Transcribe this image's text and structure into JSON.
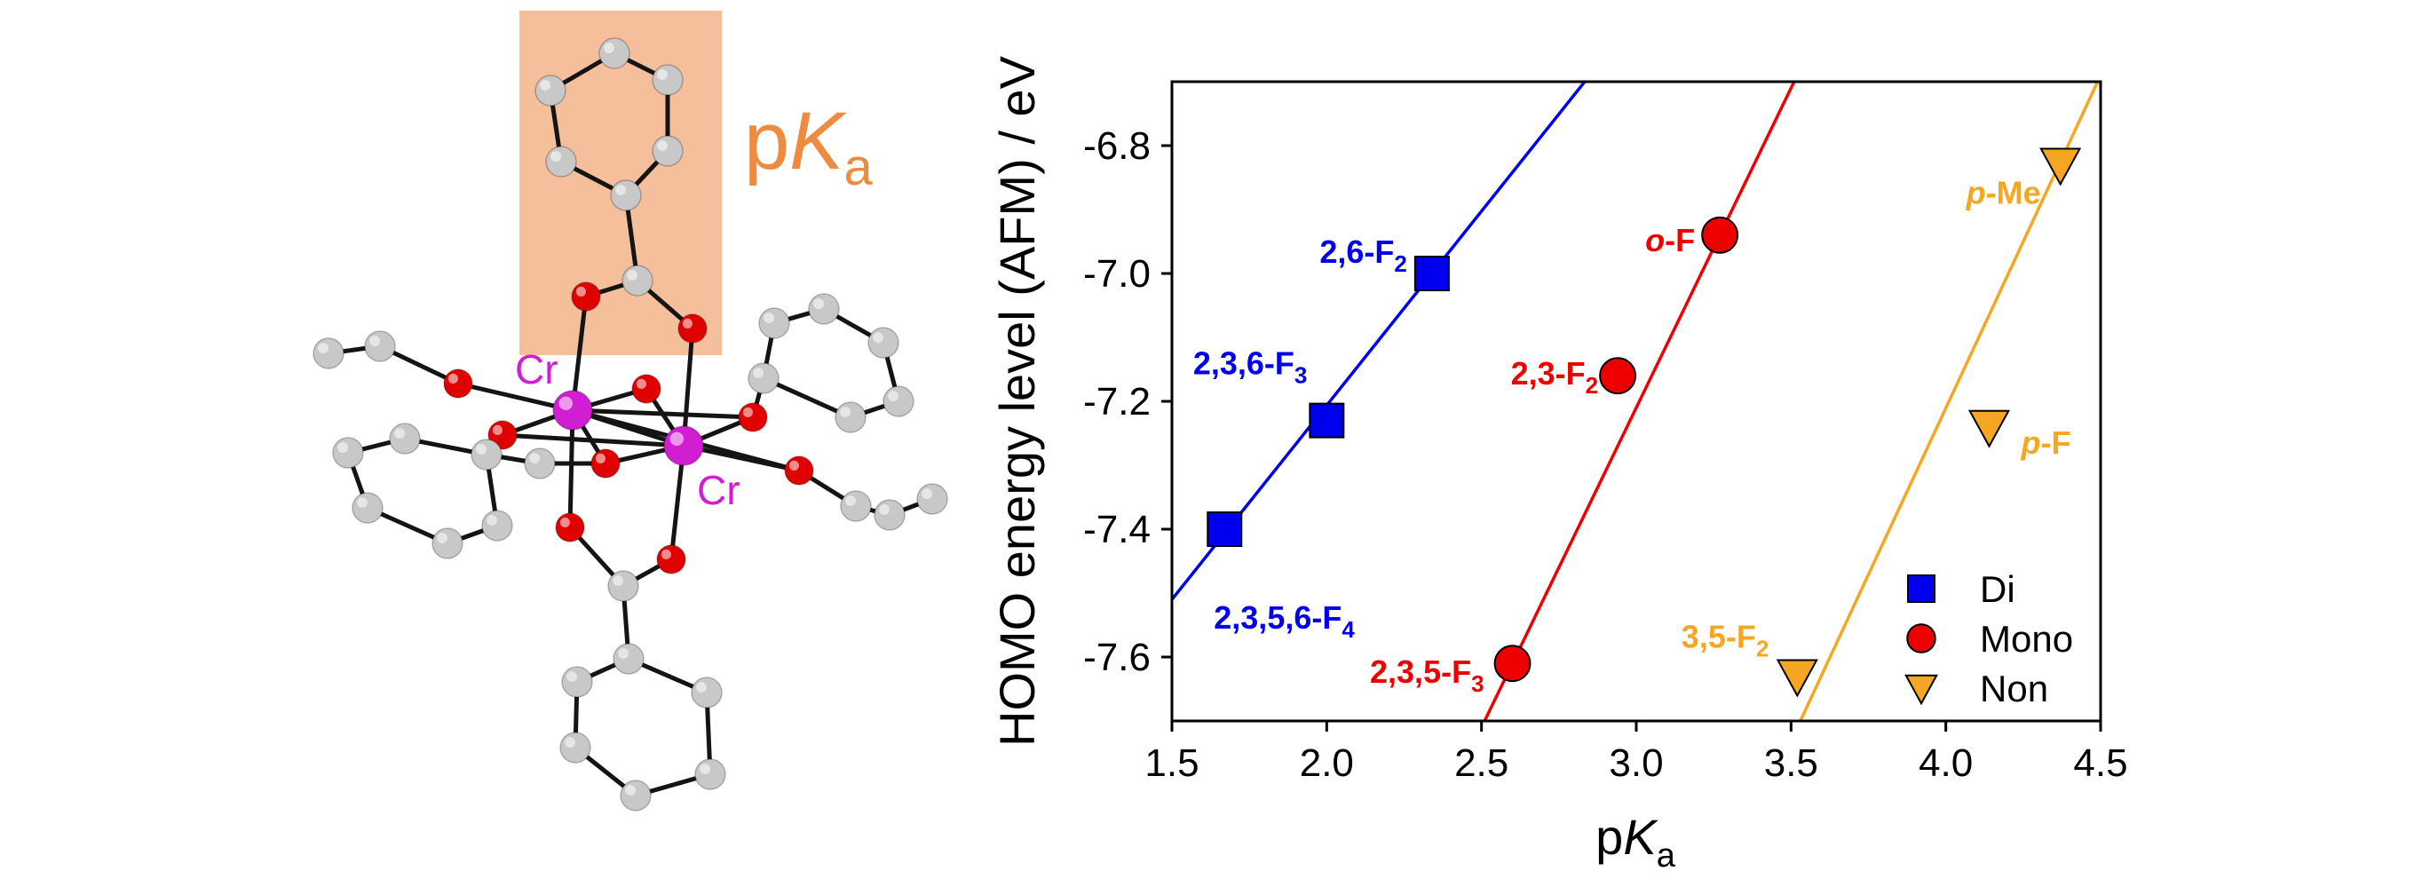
{
  "molecule": {
    "highlight_label_main": "p",
    "highlight_label_italic": "K",
    "highlight_label_sub": "a",
    "metal_label_1": "Cr",
    "metal_label_2": "Cr",
    "highlight_color": "#f5bf9c",
    "label_color": "#ee8b3f",
    "metal_color": "#d21ed2",
    "oxygen_color": "#e00000",
    "carbon_color": "#c8c8c8"
  },
  "chart_data": {
    "type": "scatter",
    "xlabel_main": "p",
    "xlabel_italic": "K",
    "xlabel_sub": "a",
    "ylabel": "HOMO energy level (AFM) / eV",
    "xlim": [
      1.5,
      4.5
    ],
    "ylim": [
      -7.7,
      -6.7
    ],
    "x_ticks": [
      1.5,
      2.0,
      2.5,
      3.0,
      3.5,
      4.0,
      4.5
    ],
    "y_ticks": [
      -7.6,
      -7.4,
      -7.2,
      -7.0,
      -6.8
    ],
    "x_tick_labels": [
      "1.5",
      "2.0",
      "2.5",
      "3.0",
      "3.5",
      "4.0",
      "4.5"
    ],
    "y_tick_labels": [
      "-7.6",
      "-7.4",
      "-7.2",
      "-7.0",
      "-6.8"
    ],
    "grid": false,
    "legend_position": "bottom-right",
    "series": [
      {
        "name": "Di",
        "marker": "square",
        "color": "#0000ee",
        "fit_line": [
          [
            1.5,
            -7.51
          ],
          [
            2.85,
            -6.69
          ]
        ],
        "points": [
          {
            "x": 1.67,
            "y": -7.4,
            "label_main": "2,3,5,6-F",
            "label_sub": "4"
          },
          {
            "x": 2.0,
            "y": -7.23,
            "label_main": "2,3,6-F",
            "label_sub": "3"
          },
          {
            "x": 2.34,
            "y": -7.0,
            "label_main": "2,6-F",
            "label_sub": "2"
          }
        ]
      },
      {
        "name": "Mono",
        "marker": "circle",
        "color": "#ee0000",
        "fit_line": [
          [
            2.51,
            -7.7
          ],
          [
            3.52,
            -6.69
          ]
        ],
        "points": [
          {
            "x": 2.6,
            "y": -7.61,
            "label_main": "2,3,5-F",
            "label_sub": "3"
          },
          {
            "x": 2.94,
            "y": -7.16,
            "label_main": "2,3-F",
            "label_sub": "2"
          },
          {
            "x": 3.27,
            "y": -6.94,
            "label_italic": "o",
            "label_main": "-F"
          }
        ]
      },
      {
        "name": "Non",
        "marker": "triangle-down",
        "color": "#f5a623",
        "fit_line": [
          [
            3.53,
            -7.7
          ],
          [
            4.5,
            -6.69
          ]
        ],
        "points": [
          {
            "x": 3.52,
            "y": -7.63,
            "label_main": "3,5-F",
            "label_sub": "2"
          },
          {
            "x": 4.14,
            "y": -7.24,
            "label_italic": "p",
            "label_main": "-F"
          },
          {
            "x": 4.37,
            "y": -6.83,
            "label_italic": "p",
            "label_main": "-Me"
          }
        ]
      }
    ]
  }
}
